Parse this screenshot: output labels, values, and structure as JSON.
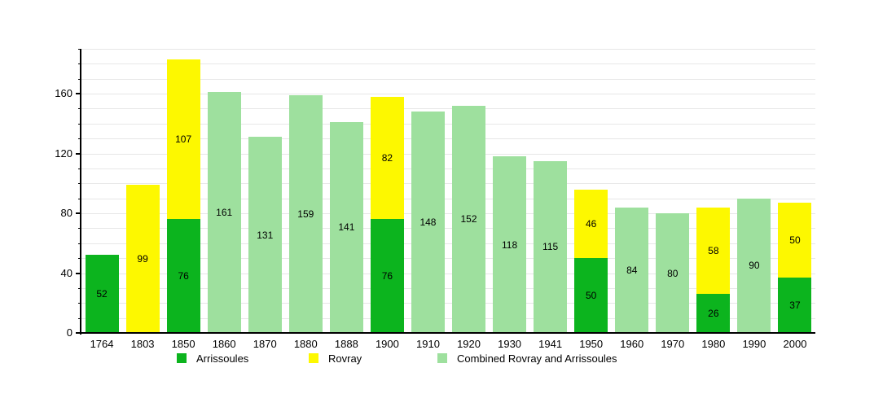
{
  "chart_data": {
    "type": "bar",
    "stacked": true,
    "title": "",
    "xlabel": "",
    "ylabel": "",
    "categories": [
      "1764",
      "1803",
      "1850",
      "1860",
      "1870",
      "1880",
      "1888",
      "1900",
      "1910",
      "1920",
      "1930",
      "1941",
      "1950",
      "1960",
      "1970",
      "1980",
      "1990",
      "2000"
    ],
    "series": [
      {
        "name": "Arrissoules",
        "color": "#0cb41e",
        "values": [
          52,
          null,
          76,
          null,
          null,
          null,
          null,
          76,
          null,
          null,
          null,
          null,
          50,
          null,
          null,
          26,
          null,
          37
        ]
      },
      {
        "name": "Rovray",
        "color": "#fdf800",
        "values": [
          null,
          99,
          107,
          null,
          null,
          null,
          null,
          82,
          null,
          null,
          null,
          null,
          46,
          null,
          null,
          58,
          null,
          50
        ]
      },
      {
        "name": "Combined Rovray and Arrissoules",
        "color": "#9ee09e",
        "values": [
          null,
          null,
          null,
          161,
          131,
          159,
          141,
          null,
          148,
          152,
          118,
          115,
          null,
          84,
          80,
          null,
          90,
          null
        ]
      }
    ],
    "bar_totals": [
      52,
      99,
      183,
      161,
      131,
      159,
      141,
      158,
      148,
      152,
      118,
      115,
      96,
      84,
      80,
      84,
      90,
      87
    ],
    "ylim": [
      0,
      190
    ],
    "yticks": [
      0,
      40,
      80,
      120,
      160
    ],
    "grid_minor_step": 10,
    "grid": "on",
    "value_labels": "inside-center",
    "legend_position": "bottom"
  },
  "colors": {
    "background": "#ffffff",
    "grid": "#e7e7e7",
    "axis": "#000000",
    "text": "#000000"
  }
}
